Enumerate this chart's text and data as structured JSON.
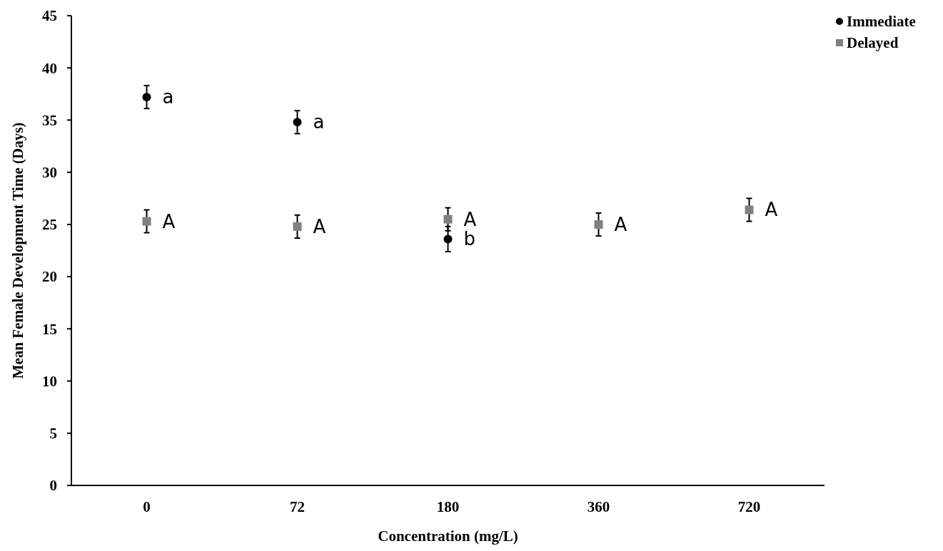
{
  "chart_data": {
    "type": "scatter",
    "xlabel": "Concentration (mg/L)",
    "ylabel": "Mean Female Development Time (Days)",
    "categories": [
      "0",
      "72",
      "180",
      "360",
      "720"
    ],
    "series": [
      {
        "name": "Immediate",
        "color": "#000000",
        "marker": "circle",
        "values": [
          37.2,
          34.8,
          23.6,
          null,
          null
        ],
        "errors": [
          1.1,
          1.1,
          1.2,
          null,
          null
        ]
      },
      {
        "name": "Delayed",
        "color": "#808080",
        "marker": "square",
        "values": [
          25.3,
          24.8,
          25.5,
          25.0,
          26.4
        ],
        "errors": [
          1.1,
          1.1,
          1.1,
          1.1,
          1.1
        ]
      }
    ],
    "ylim": [
      0,
      45
    ],
    "yticks": [
      0,
      5,
      10,
      15,
      20,
      25,
      30,
      35,
      40,
      45
    ],
    "grid": false,
    "legend": "top right",
    "annotations": [
      {
        "text": "a",
        "x": "0",
        "y": 37.2
      },
      {
        "text": "a",
        "x": "72",
        "y": 34.8
      },
      {
        "text": "b",
        "x": "180",
        "y": 23.6
      },
      {
        "text": "A",
        "x": "0",
        "y": 25.3
      },
      {
        "text": "A",
        "x": "72",
        "y": 24.8
      },
      {
        "text": "A",
        "x": "180",
        "y": 25.5
      },
      {
        "text": "A",
        "x": "360",
        "y": 25.0
      },
      {
        "text": "A",
        "x": "720",
        "y": 26.4
      }
    ]
  }
}
